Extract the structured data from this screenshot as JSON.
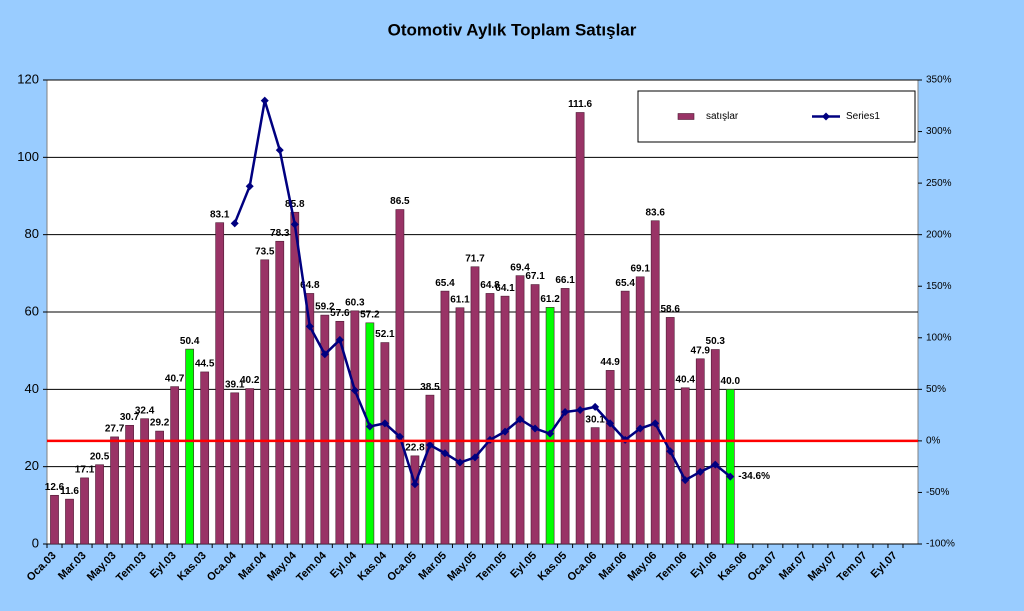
{
  "chart_data": {
    "type": "bar_line",
    "title": "Otomotiv Aylık Toplam Satışlar",
    "categories": [
      "Oca.03",
      null,
      "Mar.03",
      null,
      "May.03",
      null,
      "Tem.03",
      null,
      "Eyl.03",
      null,
      "Kas.03",
      null,
      "Oca.04",
      null,
      "Mar.04",
      null,
      "May.04",
      null,
      "Tem.04",
      null,
      "Eyl.04",
      null,
      "Kas.04",
      null,
      "Oca.05",
      null,
      "Mar.05",
      null,
      "May.05",
      null,
      "Tem.05",
      null,
      "Eyl.05",
      null,
      "Kas.05",
      null,
      "Oca.06",
      null,
      "Mar.06",
      null,
      "May.06",
      null,
      "Tem.06",
      null,
      "Eyl.06",
      null,
      "Kas.06",
      null,
      "Oca.07",
      null,
      "Mar.07",
      null,
      "May.07",
      null,
      "Tem.07",
      null,
      "Eyl.07",
      null
    ],
    "series": [
      {
        "name": "satışlar",
        "color": "#993366",
        "type": "bar",
        "values": [
          12.6,
          11.6,
          17.1,
          20.5,
          27.7,
          30.7,
          32.4,
          29.2,
          40.7,
          50.4,
          44.5,
          83.1,
          39.1,
          40.2,
          73.5,
          78.3,
          85.8,
          64.8,
          59.2,
          57.6,
          60.3,
          57.2,
          52.1,
          86.5,
          22.8,
          38.5,
          65.4,
          61.1,
          71.7,
          64.8,
          64.1,
          69.4,
          67.1,
          61.2,
          66.1,
          111.6,
          30.1,
          44.9,
          65.4,
          69.1,
          83.6,
          58.6,
          40.4,
          47.9,
          50.3,
          40,
          null,
          null,
          null,
          null,
          null,
          null,
          null,
          null,
          null,
          null,
          null,
          null
        ],
        "value_labels": [
          "12.6",
          "11.6",
          "17.1",
          "20.5",
          "27.7",
          "30.7",
          "32.4",
          "29.2",
          "40.7",
          "50.4",
          "44.5",
          "83.1",
          "39.1",
          "40.2",
          "73.5",
          "78.3",
          "85.8",
          "64.8",
          "59.2",
          "57.6",
          "60.3",
          "57.2",
          "52.1",
          "86.5",
          "22.8",
          "38.5",
          "65.4",
          "61.1",
          "71.7",
          "64.8",
          "64.1",
          "69.4",
          "67.1",
          "61.2",
          "66.1",
          "111.6",
          "30.1",
          "44.9",
          "65.4",
          "69.1",
          "83.6",
          "58.6",
          "40.4",
          "47.9",
          "50.3",
          "40.0",
          null,
          null,
          null,
          null,
          null,
          null,
          null,
          null,
          null,
          null,
          null,
          null
        ],
        "highlight": {
          "color": "#00ff00",
          "indices": [
            9,
            21,
            33,
            45
          ]
        }
      },
      {
        "name": "Series1",
        "color": "#000080",
        "type": "line",
        "axis": "y2",
        "values": [
          null,
          null,
          null,
          null,
          null,
          null,
          null,
          null,
          null,
          null,
          null,
          null,
          211,
          247,
          330,
          282,
          210,
          111,
          84,
          98,
          49,
          14,
          17,
          4,
          -42,
          -4,
          -12,
          -21,
          -16,
          1,
          9,
          21,
          12,
          7,
          28,
          30,
          33,
          17,
          1,
          12,
          17,
          -10,
          -38,
          -30,
          -23,
          -34.6,
          null,
          null,
          null,
          null,
          null,
          null,
          null,
          null,
          null,
          null,
          null,
          null
        ],
        "value_labels": [
          null,
          null,
          null,
          null,
          null,
          null,
          null,
          null,
          null,
          null,
          null,
          null,
          null,
          null,
          null,
          null,
          null,
          null,
          null,
          null,
          null,
          null,
          null,
          null,
          null,
          null,
          null,
          null,
          null,
          null,
          null,
          null,
          null,
          null,
          null,
          null,
          null,
          null,
          null,
          null,
          null,
          null,
          null,
          null,
          null,
          "-34.6%",
          null,
          null,
          null,
          null,
          null,
          null,
          null,
          null,
          null,
          null,
          null,
          null
        ]
      }
    ],
    "ylim": [
      0,
      120
    ],
    "yticks": [
      0,
      20,
      40,
      60,
      80,
      100,
      120
    ],
    "y2lim": [
      -100,
      350
    ],
    "y2ticks": [
      {
        "value": -100,
        "label": "-100%"
      },
      {
        "value": -50,
        "label": "-50%"
      },
      {
        "value": 0,
        "label": "0%"
      },
      {
        "value": 50,
        "label": "50%"
      },
      {
        "value": 100,
        "label": "100%"
      },
      {
        "value": 150,
        "label": "150%"
      },
      {
        "value": 200,
        "label": "200%"
      },
      {
        "value": 250,
        "label": "250%"
      },
      {
        "value": 300,
        "label": "300%"
      },
      {
        "value": 350,
        "label": "350%"
      }
    ],
    "reference_line": {
      "axis": "y2",
      "value": 0,
      "color": "#ff0000"
    },
    "grid": true,
    "legend": "top-right"
  }
}
